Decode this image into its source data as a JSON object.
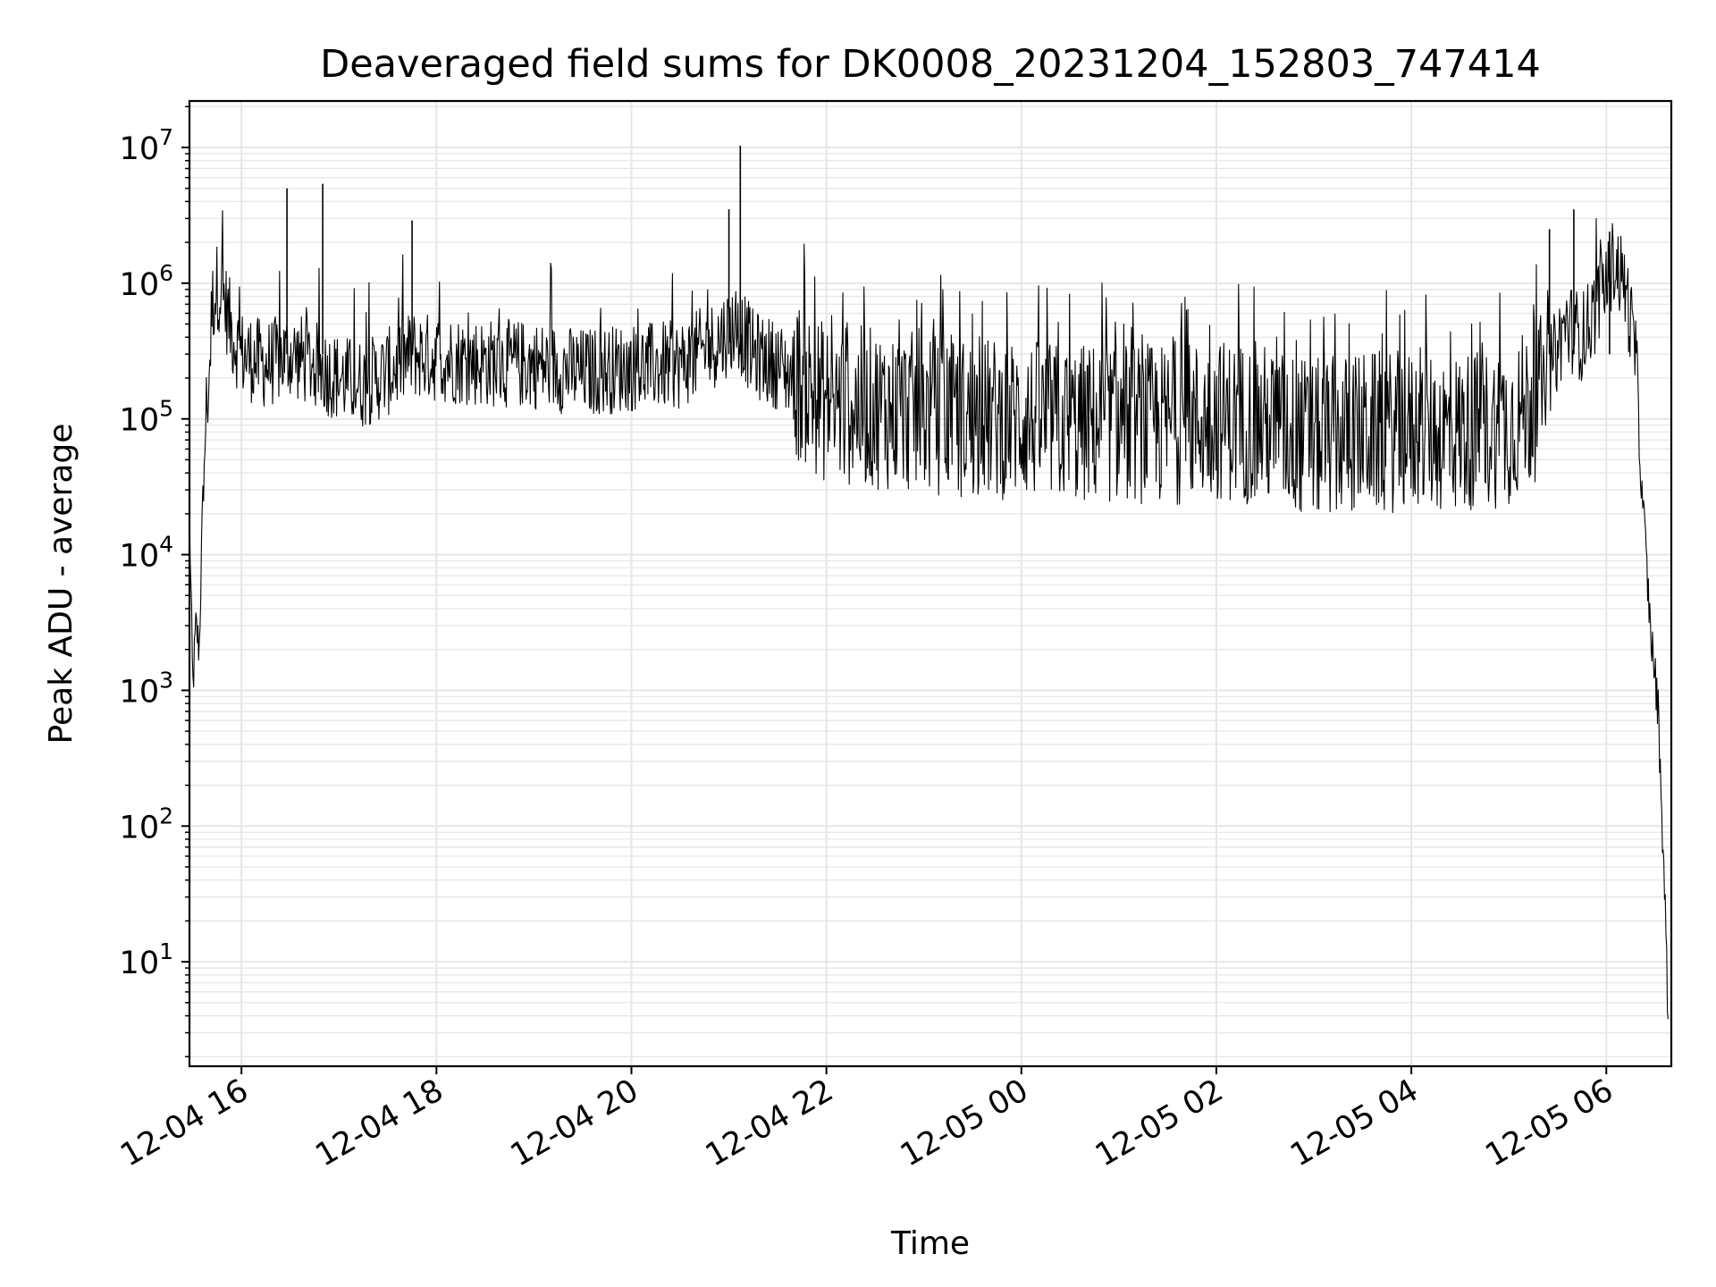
{
  "chart_data": {
    "type": "line",
    "title": "Deaveraged field sums for DK0008_20231204_152803_747414",
    "xlabel": "Time",
    "ylabel": "Peak ADU - average",
    "y_scale": "log",
    "x_axis_type": "datetime",
    "xlim": [
      "2023-12-04 15:28",
      "2023-12-05 06:40"
    ],
    "ylim": [
      1.7,
      22000000
    ],
    "x_ticks": [
      {
        "value": "2023-12-04 16:00",
        "label": "12-04 16"
      },
      {
        "value": "2023-12-04 18:00",
        "label": "12-04 18"
      },
      {
        "value": "2023-12-04 20:00",
        "label": "12-04 20"
      },
      {
        "value": "2023-12-04 22:00",
        "label": "12-04 22"
      },
      {
        "value": "2023-12-05 00:00",
        "label": "12-05 00"
      },
      {
        "value": "2023-12-05 02:00",
        "label": "12-05 02"
      },
      {
        "value": "2023-12-05 04:00",
        "label": "12-05 04"
      },
      {
        "value": "2023-12-05 06:00",
        "label": "12-05 06"
      }
    ],
    "y_ticks": [
      {
        "value": 10,
        "base": "10",
        "exp": "1"
      },
      {
        "value": 100,
        "base": "10",
        "exp": "2"
      },
      {
        "value": 1000,
        "base": "10",
        "exp": "3"
      },
      {
        "value": 10000,
        "base": "10",
        "exp": "4"
      },
      {
        "value": 100000,
        "base": "10",
        "exp": "5"
      },
      {
        "value": 1000000,
        "base": "10",
        "exp": "6"
      },
      {
        "value": 10000000,
        "base": "10",
        "exp": "7"
      }
    ],
    "grid": true,
    "grid_minor": true,
    "line_color": "#000000",
    "grid_color": "#e6e6e6",
    "series": [
      {
        "points": [
          [
            "2023-12-04 15:28",
            20000
          ],
          [
            "2023-12-04 15:30",
            1000
          ],
          [
            "2023-12-04 15:32",
            3000
          ],
          [
            "2023-12-04 15:34",
            2000
          ],
          [
            "2023-12-04 15:36",
            20000
          ],
          [
            "2023-12-04 15:38",
            100000
          ],
          [
            "2023-12-04 15:40",
            200000
          ],
          [
            "2023-12-04 15:42",
            700000
          ],
          [
            "2023-12-04 15:45",
            950000
          ],
          [
            "2023-12-04 15:48",
            900000
          ],
          [
            "2023-12-04 15:50",
            700000
          ],
          [
            "2023-12-04 15:55",
            400000
          ],
          [
            "2023-12-04 16:00",
            300000
          ],
          [
            "2023-12-04 16:15",
            250000
          ],
          [
            "2023-12-04 16:30",
            300000
          ],
          [
            "2023-12-04 16:45",
            250000
          ],
          [
            "2023-12-04 17:00",
            200000
          ],
          [
            "2023-12-04 17:15",
            180000
          ],
          [
            "2023-12-04 17:30",
            220000
          ],
          [
            "2023-12-04 17:45",
            300000
          ],
          [
            "2023-12-04 18:00",
            280000
          ],
          [
            "2023-12-04 18:30",
            260000
          ],
          [
            "2023-12-04 19:00",
            250000
          ],
          [
            "2023-12-04 19:30",
            220000
          ],
          [
            "2023-12-04 20:00",
            240000
          ],
          [
            "2023-12-04 20:30",
            250000
          ],
          [
            "2023-12-04 20:50",
            350000
          ],
          [
            "2023-12-04 21:05",
            500000
          ],
          [
            "2023-12-04 21:15",
            300000
          ],
          [
            "2023-12-04 21:30",
            250000
          ],
          [
            "2023-12-04 22:00",
            130000
          ],
          [
            "2023-12-04 22:30",
            120000
          ],
          [
            "2023-12-04 23:00",
            110000
          ],
          [
            "2023-12-04 23:30",
            100000
          ],
          [
            "2023-12-05 00:00",
            100000
          ],
          [
            "2023-12-05 00:30",
            90000
          ],
          [
            "2023-12-05 01:00",
            95000
          ],
          [
            "2023-12-05 01:30",
            90000
          ],
          [
            "2023-12-05 02:00",
            100000
          ],
          [
            "2023-12-05 02:30",
            90000
          ],
          [
            "2023-12-05 03:00",
            70000
          ],
          [
            "2023-12-05 03:30",
            80000
          ],
          [
            "2023-12-05 04:00",
            80000
          ],
          [
            "2023-12-05 04:30",
            80000
          ],
          [
            "2023-12-05 05:00",
            90000
          ],
          [
            "2023-12-05 05:20",
            150000
          ],
          [
            "2023-12-05 05:35",
            500000
          ],
          [
            "2023-12-05 05:45",
            400000
          ],
          [
            "2023-12-05 05:55",
            700000
          ],
          [
            "2023-12-05 06:05",
            1500000
          ],
          [
            "2023-12-05 06:12",
            900000
          ],
          [
            "2023-12-05 06:18",
            300000
          ],
          [
            "2023-12-05 06:22",
            30000
          ],
          [
            "2023-12-05 06:27",
            3000
          ],
          [
            "2023-12-05 06:32",
            700
          ],
          [
            "2023-12-05 06:36",
            30
          ],
          [
            "2023-12-05 06:38",
            4
          ]
        ],
        "spikes": [
          [
            "2023-12-04 16:28",
            5000000
          ],
          [
            "2023-12-04 16:50",
            5400000
          ],
          [
            "2023-12-04 17:45",
            2900000
          ],
          [
            "2023-12-04 21:00",
            3500000
          ],
          [
            "2023-12-04 21:07",
            10300000
          ],
          [
            "2023-12-05 05:25",
            2500000
          ],
          [
            "2023-12-05 05:40",
            3500000
          ],
          [
            "2023-12-05 06:02",
            2400000
          ]
        ]
      }
    ]
  }
}
